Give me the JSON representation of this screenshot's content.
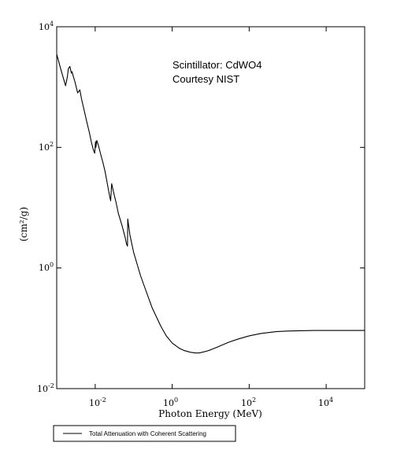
{
  "chart_data": {
    "type": "line",
    "title": "",
    "xlabel": "Photon Energy (MeV)",
    "ylabel": "(cm²/g)",
    "xscale": "log",
    "yscale": "log",
    "xlim": [
      0.001,
      100000
    ],
    "ylim": [
      0.01,
      10000
    ],
    "grid": false,
    "legend_position": "bottom-left",
    "x_ticks": [
      {
        "base": "10",
        "exp": "-2",
        "value": 0.01
      },
      {
        "base": "10",
        "exp": "0",
        "value": 1
      },
      {
        "base": "10",
        "exp": "2",
        "value": 100
      },
      {
        "base": "10",
        "exp": "4",
        "value": 10000
      }
    ],
    "y_ticks": [
      {
        "base": "10",
        "exp": "-2",
        "value": 0.01
      },
      {
        "base": "10",
        "exp": "0",
        "value": 1
      },
      {
        "base": "10",
        "exp": "2",
        "value": 100
      },
      {
        "base": "10",
        "exp": "4",
        "value": 10000
      }
    ],
    "annotations": [
      "Scintillator: CdWO4",
      "Courtesy NIST"
    ],
    "series": [
      {
        "name": "Total Attenuation with Coherent Scattering",
        "color": "#000000",
        "x": [
          0.001,
          0.0013,
          0.0017,
          0.0019,
          0.002,
          0.0022,
          0.0024,
          0.0025,
          0.0027,
          0.003,
          0.0035,
          0.004,
          0.0042,
          0.0045,
          0.005,
          0.006,
          0.007,
          0.008,
          0.009,
          0.0097,
          0.0102,
          0.0104,
          0.011,
          0.012,
          0.0125,
          0.014,
          0.016,
          0.018,
          0.02,
          0.022,
          0.024,
          0.0252,
          0.0268,
          0.03,
          0.035,
          0.04,
          0.05,
          0.06,
          0.065,
          0.069,
          0.07,
          0.08,
          0.1,
          0.15,
          0.2,
          0.3,
          0.5,
          0.7,
          1,
          1.5,
          2,
          3,
          4,
          5,
          6,
          8,
          10,
          15,
          20,
          30,
          50,
          100,
          200,
          500,
          1000,
          2000,
          5000,
          10000,
          100000
        ],
        "y": [
          3500,
          1900,
          1050,
          1500,
          2000,
          2200,
          1700,
          1800,
          1500,
          1200,
          800,
          900,
          750,
          600,
          450,
          270,
          180,
          120,
          90,
          80,
          125,
          100,
          130,
          110,
          100,
          75,
          55,
          40,
          28,
          20,
          15,
          13,
          25,
          18,
          12,
          8,
          5,
          3.2,
          2.5,
          2.3,
          6.5,
          3.5,
          1.8,
          0.75,
          0.45,
          0.22,
          0.11,
          0.075,
          0.057,
          0.047,
          0.043,
          0.04,
          0.039,
          0.039,
          0.04,
          0.042,
          0.044,
          0.049,
          0.053,
          0.059,
          0.066,
          0.075,
          0.082,
          0.088,
          0.09,
          0.091,
          0.092,
          0.092,
          0.092
        ]
      }
    ]
  }
}
